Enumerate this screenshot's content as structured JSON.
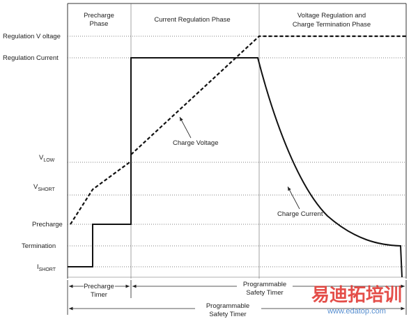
{
  "phases": [
    "Precharge",
    "Phase",
    "Current Regulation Phase",
    "Voltage Regulation and",
    "Charge Termination Phase"
  ],
  "levels": {
    "regulation_voltage": "Regulation V oltage",
    "regulation_current": "Regulation Current",
    "v_low": {
      "main": "V",
      "sub": "LOW"
    },
    "v_short": {
      "main": "V",
      "sub": "SHORT"
    },
    "precharge": "Precharge",
    "termination": "Termination",
    "i_short": {
      "main": "I",
      "sub": "SHORT"
    }
  },
  "curves": {
    "voltage": "Charge Voltage",
    "current": "Charge Current"
  },
  "timers": {
    "precharge": [
      "Precharge",
      "Timer"
    ],
    "safety": [
      "Programmable",
      "Safety Timer"
    ],
    "total": [
      "Programmable",
      "Safety Timer"
    ]
  },
  "watermark": {
    "cn": "易迪拓培训",
    "url": "www.edatop.com"
  }
}
